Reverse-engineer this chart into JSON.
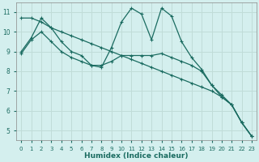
{
  "xlabel": "Humidex (Indice chaleur)",
  "bg_color": "#d4efee",
  "line_color": "#1a6b60",
  "grid_color": "#c0dcd8",
  "series1_x": [
    0,
    1,
    2,
    3,
    4,
    5,
    6,
    7,
    8,
    9,
    10,
    11,
    12,
    13,
    14,
    15,
    16,
    17,
    18,
    19,
    20,
    21,
    22,
    23
  ],
  "series1_y": [
    10.7,
    10.7,
    10.5,
    10.2,
    10.0,
    9.8,
    9.6,
    9.4,
    9.2,
    9.0,
    8.8,
    8.6,
    8.4,
    8.2,
    8.0,
    7.8,
    7.6,
    7.4,
    7.2,
    7.0,
    6.7,
    6.3,
    5.4,
    4.7
  ],
  "series2_x": [
    0,
    1,
    2,
    3,
    4,
    5,
    6,
    7,
    8,
    9,
    10,
    11,
    12,
    13,
    14,
    15,
    16,
    17,
    18,
    19,
    20,
    21,
    22,
    23
  ],
  "series2_y": [
    9.0,
    9.7,
    10.7,
    10.2,
    9.5,
    9.0,
    8.8,
    8.3,
    8.3,
    8.5,
    8.8,
    8.8,
    8.8,
    8.8,
    8.9,
    8.7,
    8.5,
    8.3,
    8.0,
    7.3,
    6.7,
    6.3,
    5.4,
    4.7
  ],
  "series3_x": [
    0,
    1,
    2,
    3,
    4,
    5,
    6,
    7,
    8,
    9,
    10,
    11,
    12,
    13,
    14,
    15,
    16,
    17,
    18,
    19,
    20,
    21,
    22,
    23
  ],
  "series3_y": [
    8.9,
    9.6,
    10.0,
    9.5,
    9.0,
    8.7,
    8.5,
    8.3,
    8.2,
    9.2,
    10.5,
    11.2,
    10.9,
    9.6,
    11.2,
    10.8,
    9.5,
    8.7,
    8.1,
    7.3,
    6.8,
    6.3,
    5.4,
    4.7
  ],
  "ylim": [
    4.5,
    11.5
  ],
  "xlim": [
    -0.5,
    23.5
  ],
  "yticks": [
    5,
    6,
    7,
    8,
    9,
    10,
    11
  ],
  "xticks": [
    0,
    1,
    2,
    3,
    4,
    5,
    6,
    7,
    8,
    9,
    10,
    11,
    12,
    13,
    14,
    15,
    16,
    17,
    18,
    19,
    20,
    21,
    22,
    23
  ]
}
